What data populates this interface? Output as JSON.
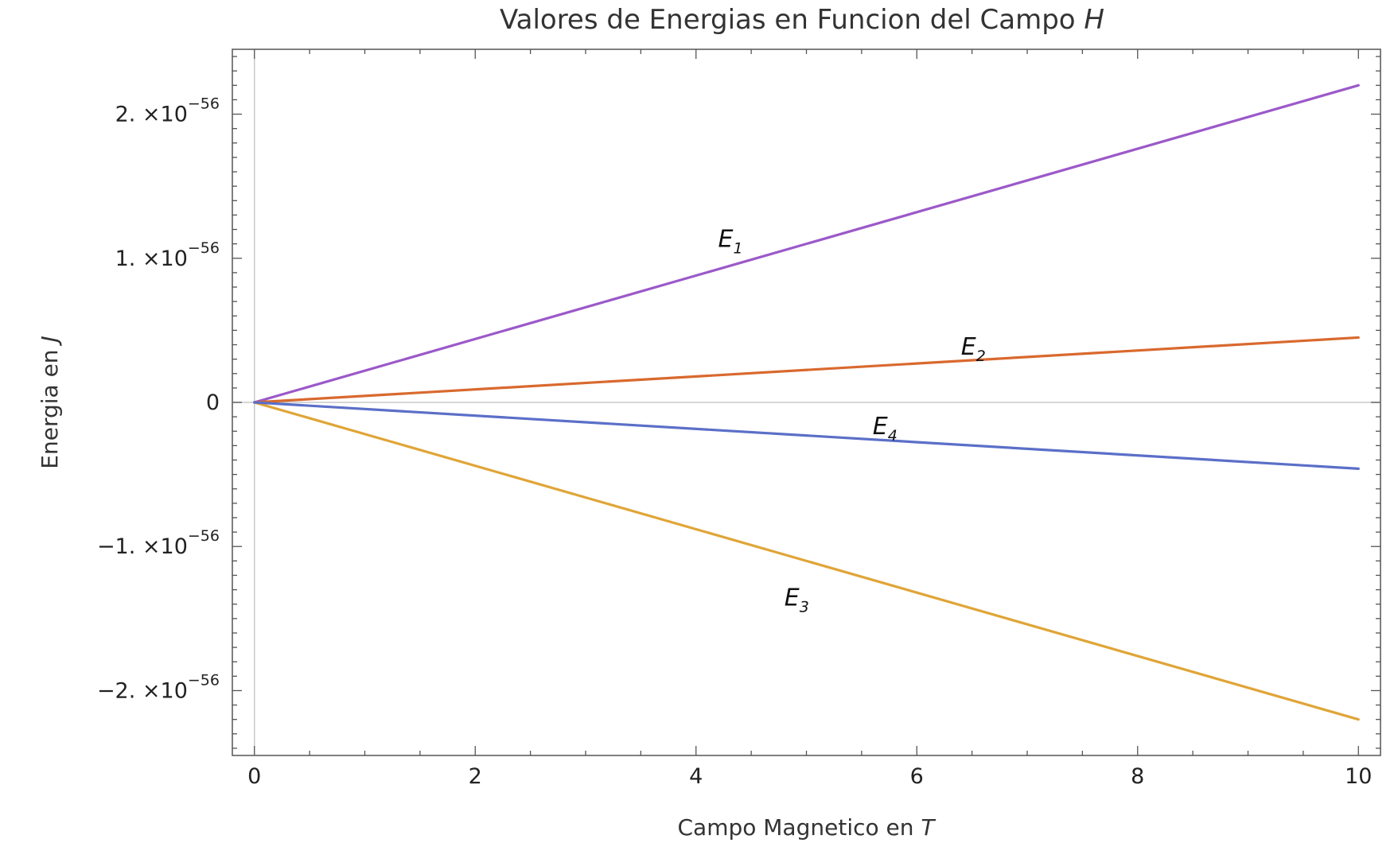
{
  "chart_data": {
    "type": "line",
    "title": "Valores de Energias en Funcion del Campo H",
    "xlabel": "Campo Magnetico en T",
    "ylabel": "Energia en J",
    "xlim": [
      -0.2,
      10.2
    ],
    "ylim": [
      -2.45e-56,
      2.45e-56
    ],
    "x_ticks": [
      0,
      2,
      4,
      6,
      8,
      10
    ],
    "x_tick_labels": [
      "0",
      "2",
      "4",
      "6",
      "8",
      "10"
    ],
    "y_ticks": [
      {
        "value": 2e-56,
        "mantissa": "2.",
        "times": "×10",
        "exp": "−56"
      },
      {
        "value": 1e-56,
        "mantissa": "1.",
        "times": "×10",
        "exp": "−56"
      },
      {
        "value": 0,
        "mantissa": "0",
        "times": "",
        "exp": ""
      },
      {
        "value": -1e-56,
        "mantissa": "−1.",
        "times": "×10",
        "exp": "−56"
      },
      {
        "value": -2e-56,
        "mantissa": "−2.",
        "times": "×10",
        "exp": "−56"
      }
    ],
    "grid": false,
    "series": [
      {
        "name": "E",
        "sub": "1",
        "color": "#9b59c9",
        "x": [
          0,
          10
        ],
        "y": [
          0,
          2.2e-56
        ],
        "label_at": [
          4.2,
          1.08e-56
        ]
      },
      {
        "name": "E",
        "sub": "2",
        "color": "#d9692e",
        "x": [
          0,
          10
        ],
        "y": [
          0,
          4.5e-57
        ],
        "label_at": [
          6.4,
          3.3e-57
        ]
      },
      {
        "name": "E",
        "sub": "3",
        "color": "#e0a537",
        "x": [
          0,
          10
        ],
        "y": [
          0,
          -2.2e-56
        ],
        "label_at": [
          4.8,
          -1.41e-56
        ]
      },
      {
        "name": "E",
        "sub": "4",
        "color": "#5b6fc8",
        "x": [
          0,
          10
        ],
        "y": [
          0,
          -4.6e-57
        ],
        "label_at": [
          5.6,
          -2.2e-57
        ]
      }
    ]
  }
}
